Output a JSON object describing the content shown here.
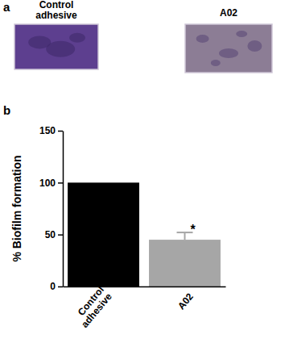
{
  "figure": {
    "panels": [
      {
        "label": "a",
        "images": [
          "Control adhesive",
          "A02"
        ]
      },
      {
        "label": "b"
      }
    ]
  },
  "chart_data": {
    "type": "bar",
    "y_label": "% Biofilm formation",
    "categories": [
      "Control adhesive",
      "A02"
    ],
    "values": [
      100,
      45
    ],
    "errors": [
      null,
      7
    ],
    "annotations": [
      null,
      "*"
    ],
    "colors": [
      "#000000",
      "#a6a6a6"
    ],
    "ylim": [
      0,
      150
    ],
    "yticks": [
      0,
      50,
      100,
      150
    ],
    "grid": false
  }
}
